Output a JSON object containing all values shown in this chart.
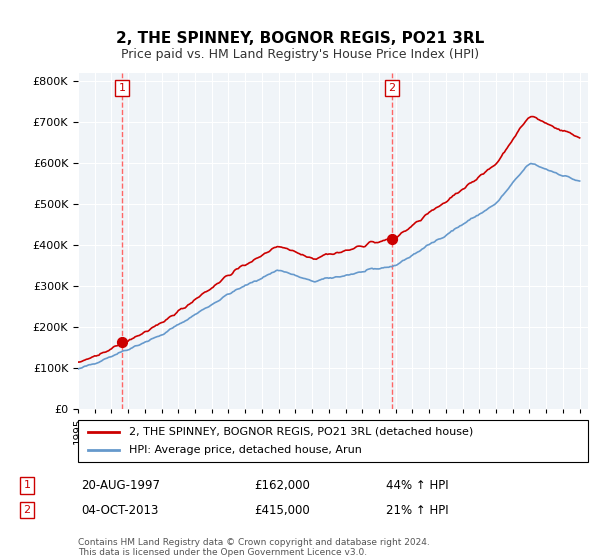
{
  "title": "2, THE SPINNEY, BOGNOR REGIS, PO21 3RL",
  "subtitle": "Price paid vs. HM Land Registry's House Price Index (HPI)",
  "sale1_date": "20-AUG-1997",
  "sale1_price": 162000,
  "sale1_pct": "44% ↑ HPI",
  "sale2_date": "04-OCT-2013",
  "sale2_price": 415000,
  "sale2_pct": "21% ↑ HPI",
  "sale1_year": 1997.64,
  "sale2_year": 2013.76,
  "legend_line1": "2, THE SPINNEY, BOGNOR REGIS, PO21 3RL (detached house)",
  "legend_line2": "HPI: Average price, detached house, Arun",
  "footer": "Contains HM Land Registry data © Crown copyright and database right 2024.\nThis data is licensed under the Open Government Licence v3.0.",
  "red_color": "#cc0000",
  "blue_color": "#6699cc",
  "dashed_color": "#ff6666",
  "background_color": "#f0f4f8",
  "ylim": [
    0,
    820000
  ],
  "xlim_start": 1995.0,
  "xlim_end": 2025.5
}
